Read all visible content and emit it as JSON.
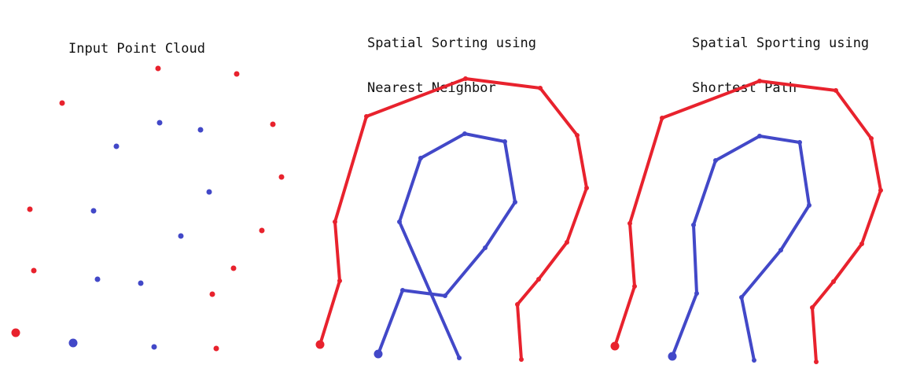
{
  "panels": [
    {
      "id": "input",
      "title_lines": [
        "Input Point Cloud"
      ]
    },
    {
      "id": "nearest",
      "title_lines": [
        "Spatial Sorting using",
        "Nearest Neighbor"
      ]
    },
    {
      "id": "shortest",
      "title_lines": [
        "Spatial Sporting using",
        "Shortest Path"
      ]
    }
  ],
  "colors": {
    "red": "#e8222d",
    "blue": "#4248c8"
  },
  "icons": {
    "start_marker": "large-filled-dot"
  }
}
